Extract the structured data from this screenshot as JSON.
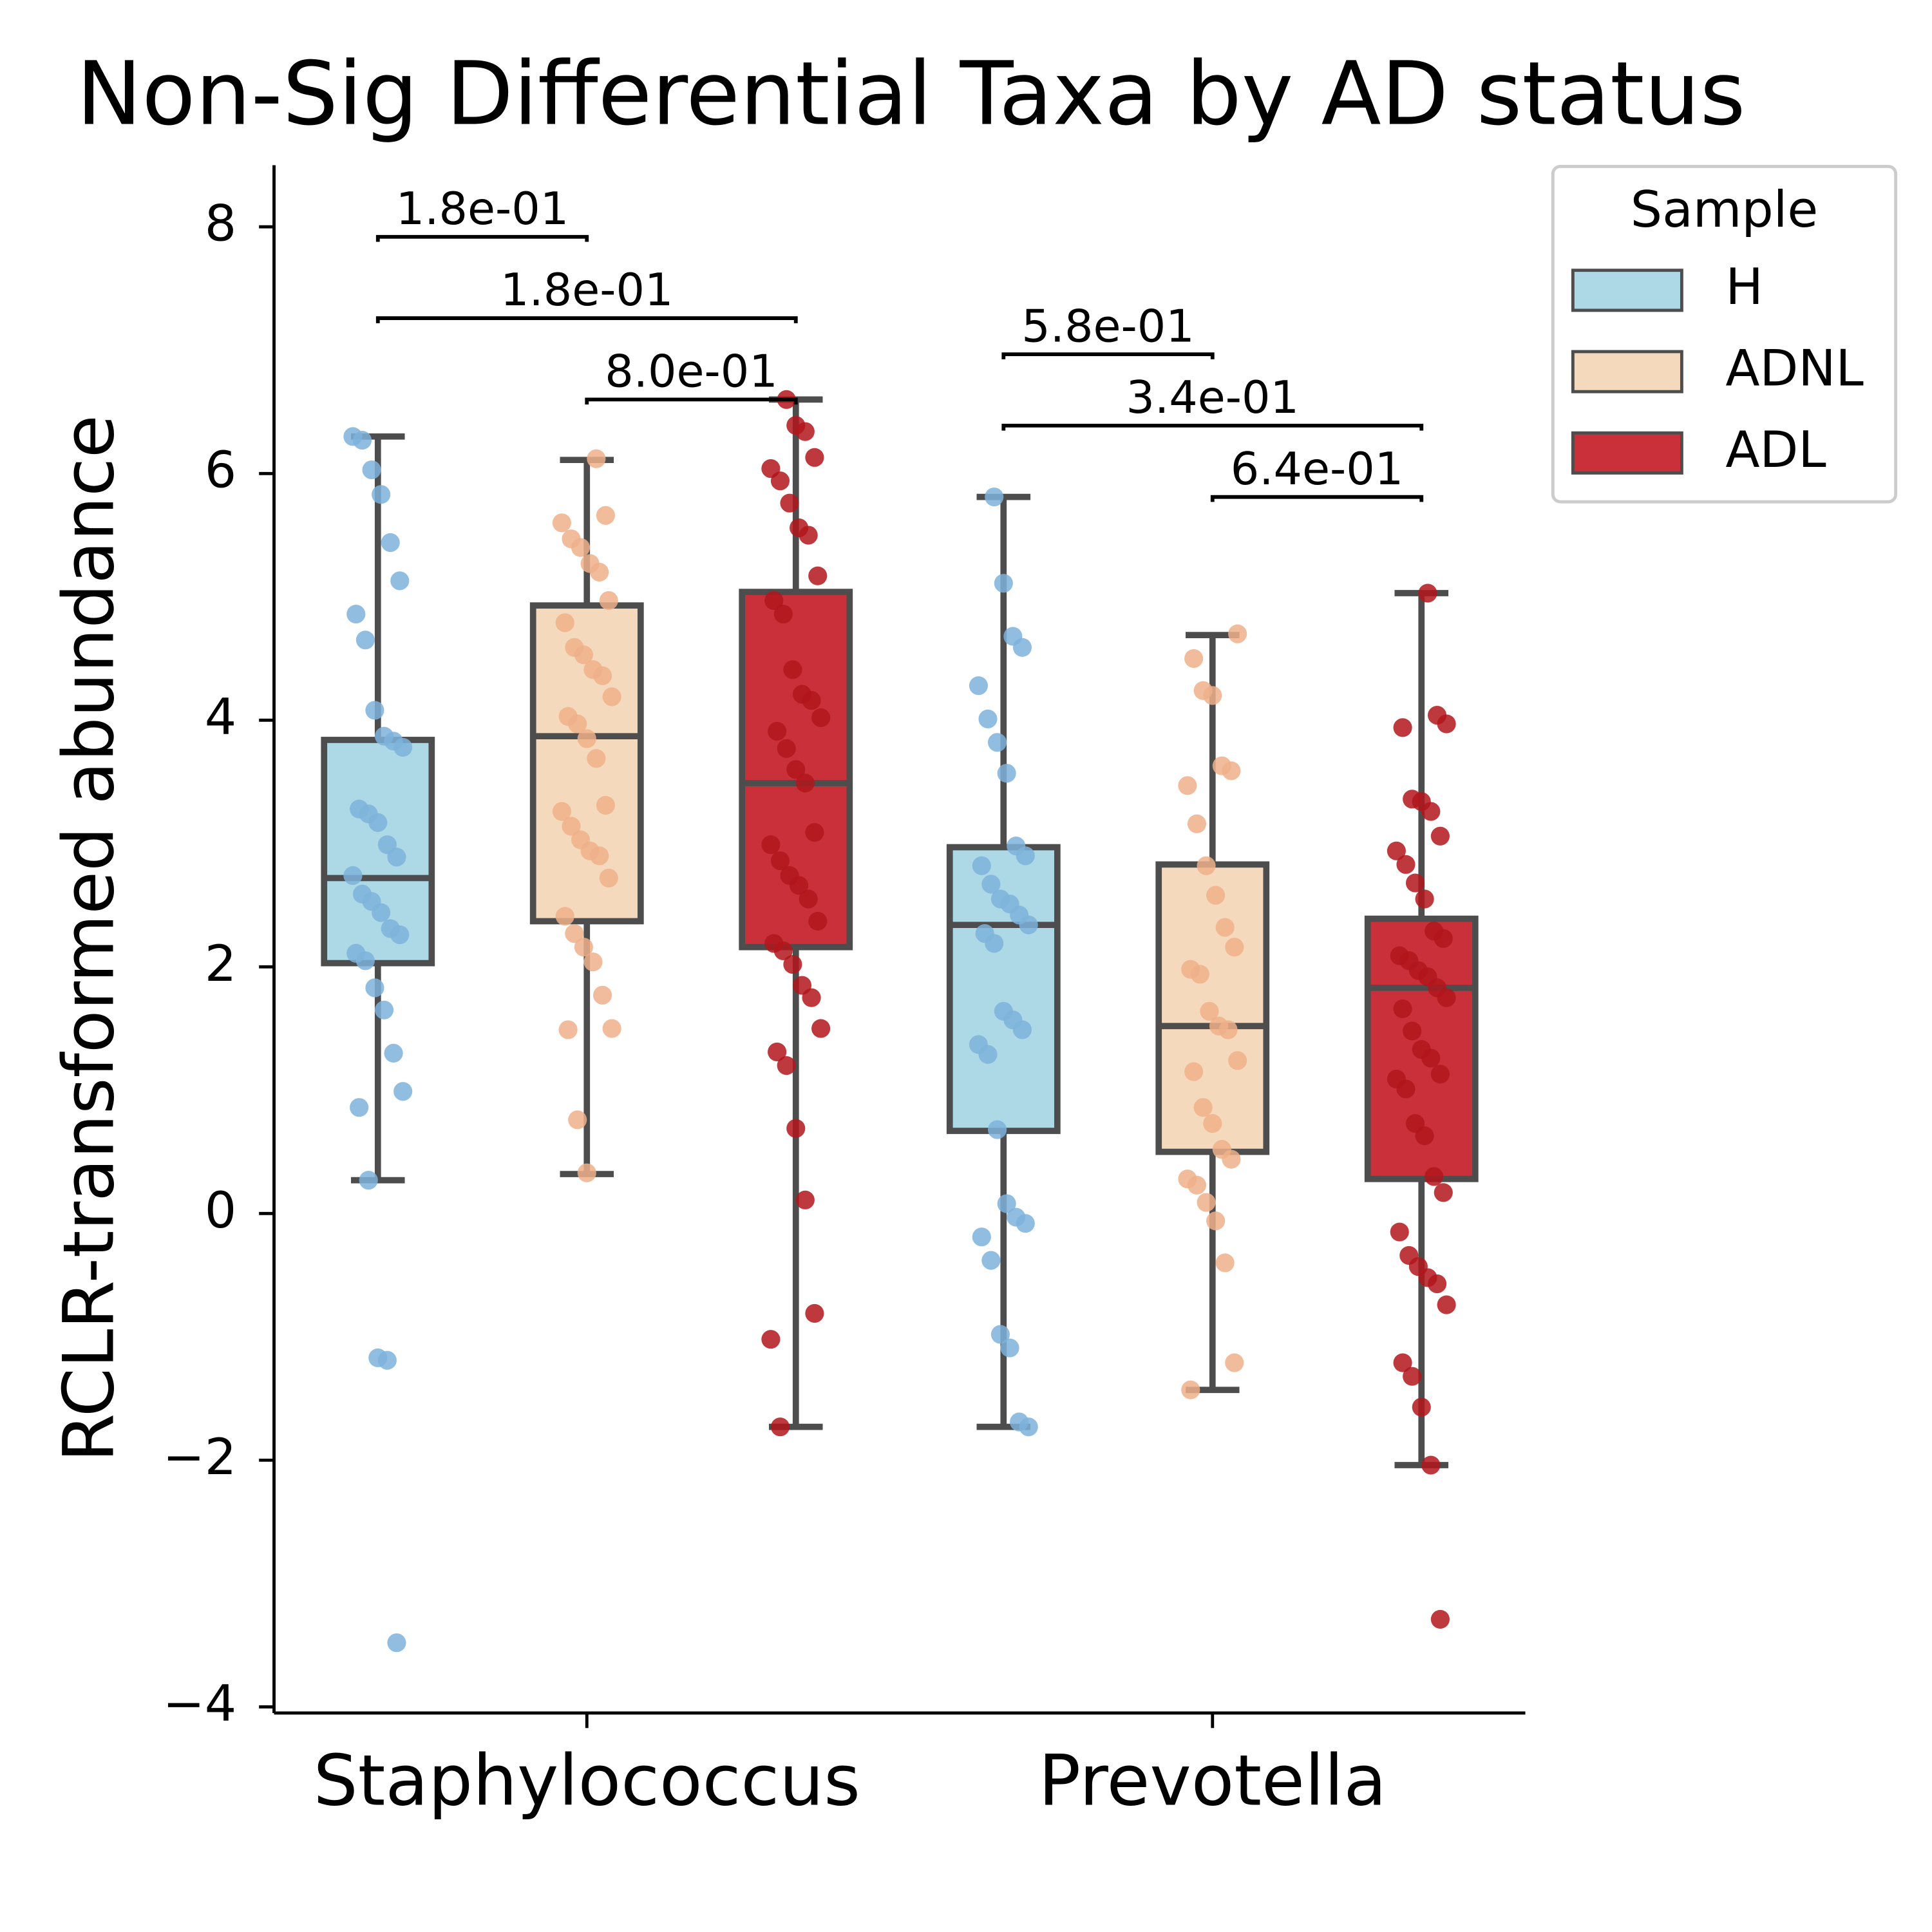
{
  "chart_data": {
    "type": "box",
    "title": "Non-Sig Differential Taxa by AD status",
    "ylabel": "RCLR-transformed abundance",
    "categories": [
      "Staphylococcus",
      "Prevotella"
    ],
    "ylim": [
      -4.05,
      8.5
    ],
    "yticks": [
      {
        "value": -4,
        "label": "−4"
      },
      {
        "value": -2,
        "label": "−2"
      },
      0,
      2,
      4,
      6,
      8
    ],
    "legend_title": "Sample",
    "series": [
      {
        "name": "H",
        "color": "#add8e6",
        "point_color": "#7eb3da",
        "boxes": [
          {
            "whislo": 0.27,
            "q1": 2.03,
            "med": 2.72,
            "q3": 3.84,
            "whishi": 6.3
          },
          {
            "whislo": -1.73,
            "q1": 0.67,
            "med": 2.34,
            "q3": 2.97,
            "whishi": 5.81
          }
        ],
        "points": [
          [
            6.3,
            6.27,
            6.03,
            5.83,
            5.44,
            5.13,
            4.86,
            4.65,
            4.08,
            3.87,
            3.83,
            3.78,
            3.28,
            3.24,
            3.17,
            2.99,
            2.89,
            2.74,
            2.59,
            2.53,
            2.44,
            2.31,
            2.26,
            2.11,
            2.05,
            1.83,
            1.65,
            1.3,
            0.99,
            0.86,
            0.27,
            -1.17,
            -1.19,
            -3.48
          ],
          [
            5.81,
            5.11,
            4.68,
            4.59,
            4.28,
            4.01,
            3.82,
            3.57,
            2.98,
            2.9,
            2.82,
            2.67,
            2.55,
            2.51,
            2.42,
            2.34,
            2.27,
            2.19,
            1.64,
            1.57,
            1.49,
            1.37,
            1.29,
            0.68,
            0.08,
            -0.03,
            -0.08,
            -0.19,
            -0.38,
            -0.98,
            -1.09,
            -1.69,
            -1.73
          ]
        ]
      },
      {
        "name": "ADNL",
        "color": "#f5d9bd",
        "point_color": "#eeb08a",
        "boxes": [
          {
            "whislo": 0.32,
            "q1": 2.37,
            "med": 3.87,
            "q3": 4.93,
            "whishi": 6.11
          },
          {
            "whislo": -1.43,
            "q1": 0.5,
            "med": 1.52,
            "q3": 2.83,
            "whishi": 4.69
          }
        ],
        "points": [
          [
            6.12,
            5.66,
            5.6,
            5.47,
            5.4,
            5.27,
            5.2,
            4.97,
            4.79,
            4.59,
            4.53,
            4.41,
            4.36,
            4.19,
            4.03,
            3.97,
            3.85,
            3.69,
            3.31,
            3.26,
            3.14,
            3.03,
            2.94,
            2.9,
            2.72,
            2.41,
            2.27,
            2.16,
            2.04,
            1.77,
            1.5,
            1.49,
            0.76,
            0.33
          ],
          [
            4.7,
            4.5,
            4.24,
            4.2,
            3.63,
            3.59,
            3.47,
            3.16,
            2.82,
            2.58,
            2.32,
            2.16,
            1.98,
            1.94,
            1.64,
            1.52,
            1.49,
            1.24,
            1.15,
            0.86,
            0.73,
            0.52,
            0.44,
            0.28,
            0.23,
            0.09,
            -0.06,
            -0.4,
            -1.21,
            -1.43
          ]
        ]
      },
      {
        "name": "ADL",
        "color": "#c9303a",
        "point_color": "#b2161c",
        "boxes": [
          {
            "whislo": -1.73,
            "q1": 2.16,
            "med": 3.49,
            "q3": 5.04,
            "whishi": 6.6
          },
          {
            "whislo": -2.04,
            "q1": 0.28,
            "med": 1.83,
            "q3": 2.39,
            "whishi": 5.03
          }
        ],
        "points": [
          [
            6.6,
            6.39,
            6.34,
            6.13,
            6.04,
            5.94,
            5.76,
            5.56,
            5.5,
            5.17,
            4.97,
            4.86,
            4.41,
            4.21,
            4.16,
            4.02,
            3.91,
            3.77,
            3.6,
            3.49,
            3.09,
            2.99,
            2.86,
            2.74,
            2.66,
            2.55,
            2.37,
            2.19,
            2.13,
            2.02,
            1.85,
            1.75,
            1.5,
            1.31,
            1.2,
            0.69,
            0.11,
            -0.81,
            -1.02,
            -1.73
          ],
          [
            5.03,
            4.04,
            3.97,
            3.94,
            3.36,
            3.34,
            3.26,
            3.06,
            2.94,
            2.83,
            2.68,
            2.55,
            2.29,
            2.23,
            2.09,
            2.05,
            1.97,
            1.92,
            1.83,
            1.75,
            1.66,
            1.48,
            1.33,
            1.26,
            1.13,
            1.09,
            1.01,
            0.73,
            0.63,
            0.3,
            0.17,
            -0.15,
            -0.34,
            -0.43,
            -0.52,
            -0.57,
            -0.74,
            -1.21,
            -1.32,
            -1.57,
            -2.04,
            -3.29
          ]
        ]
      }
    ],
    "annotations": [
      {
        "label": "1.8e-01",
        "category": "Staphylococcus",
        "groups": [
          "H",
          "ADNL"
        ]
      },
      {
        "label": "1.8e-01",
        "category": "Staphylococcus",
        "groups": [
          "H",
          "ADL"
        ]
      },
      {
        "label": "8.0e-01",
        "category": "Staphylococcus",
        "groups": [
          "ADNL",
          "ADL"
        ]
      },
      {
        "label": "5.8e-01",
        "category": "Prevotella",
        "groups": [
          "H",
          "ADNL"
        ]
      },
      {
        "label": "3.4e-01",
        "category": "Prevotella",
        "groups": [
          "H",
          "ADL"
        ]
      },
      {
        "label": "6.4e-01",
        "category": "Prevotella",
        "groups": [
          "ADNL",
          "ADL"
        ]
      }
    ]
  }
}
